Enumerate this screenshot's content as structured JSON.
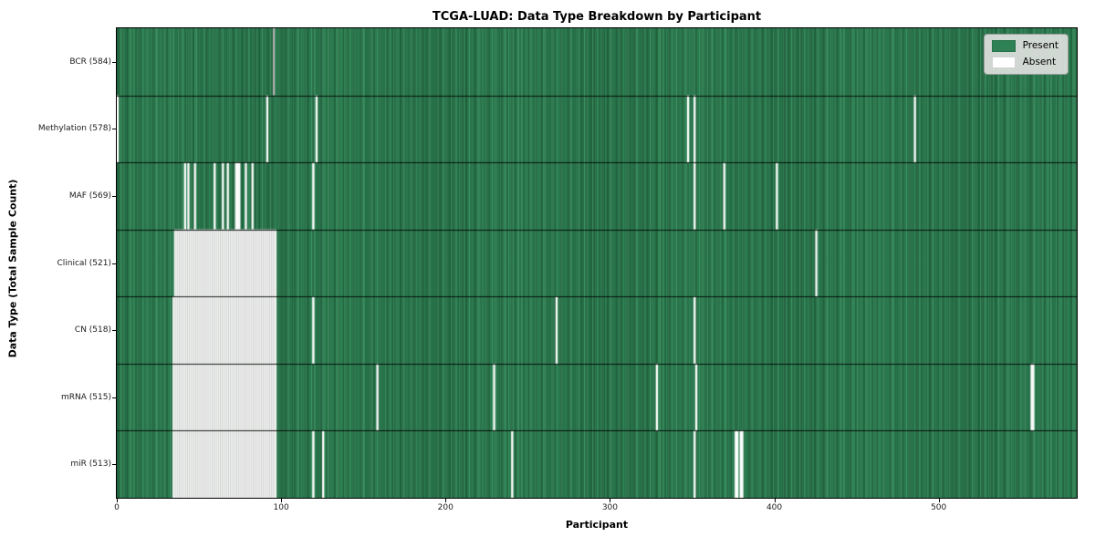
{
  "chart_data": {
    "type": "heatmap",
    "title": "TCGA-LUAD: Data Type Breakdown by Participant",
    "xlabel": "Participant",
    "ylabel": "Data Type (Total Sample Count)",
    "n_participants": 584,
    "x_ticks": [
      0,
      100,
      200,
      300,
      400,
      500
    ],
    "grid": false,
    "legend_position": "upper right",
    "legend": [
      {
        "label": "Present",
        "color": "#2e8155"
      },
      {
        "label": "Absent",
        "color": "#ffffff"
      }
    ],
    "colors": {
      "present_base": "#2e8155",
      "present_shades": [
        "#256f46",
        "#2a7a4e",
        "#2f8556",
        "#358f5e",
        "#3a9a66",
        "#2c7e52"
      ],
      "absent": "#ffffff",
      "bcr_gap": "#b0b0b0",
      "cell_edge": "rgba(10,32,20,0.55)",
      "absent_separator": "#aeb2af",
      "row_divider": "rgba(0,0,0,0.85)"
    },
    "rows": [
      {
        "label": "BCR (584)",
        "data_type": "BCR",
        "total_samples": 584,
        "absent": [
          95
        ],
        "absent_color": "#b0b0b0"
      },
      {
        "label": "Methylation (578)",
        "data_type": "Methylation",
        "total_samples": 578,
        "absent": [
          0,
          91,
          121,
          347,
          351,
          485
        ]
      },
      {
        "label": "MAF (569)",
        "data_type": "MAF",
        "total_samples": 569,
        "absent": [
          41,
          43,
          47,
          59,
          64,
          67,
          72,
          73,
          74,
          78,
          82,
          119,
          351,
          369,
          401
        ]
      },
      {
        "label": "Clinical (521)",
        "data_type": "Clinical",
        "total_samples": 521,
        "absent_range": [
          35,
          96
        ],
        "absent": [
          425
        ]
      },
      {
        "label": "CN (518)",
        "data_type": "CN",
        "total_samples": 518,
        "absent_range": [
          34,
          96
        ],
        "absent": [
          119,
          267,
          351
        ]
      },
      {
        "label": "mRNA (515)",
        "data_type": "mRNA",
        "total_samples": 515,
        "absent_range": [
          34,
          96
        ],
        "absent": [
          158,
          229,
          328,
          352,
          556,
          557
        ]
      },
      {
        "label": "miR (513)",
        "data_type": "miR",
        "total_samples": 513,
        "absent_range": [
          34,
          96
        ],
        "absent": [
          119,
          125,
          240,
          351,
          376,
          377,
          379,
          380
        ]
      }
    ]
  }
}
